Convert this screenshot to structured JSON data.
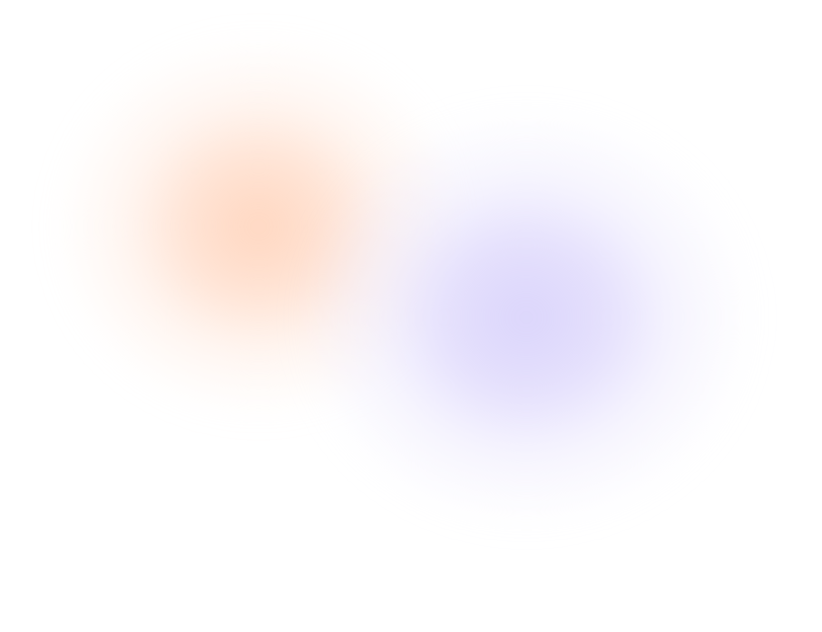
{
  "background": {
    "base_color": "#ffffff",
    "blobs": [
      {
        "name": "orange",
        "color": "#ffd6c0"
      },
      {
        "name": "purple",
        "color": "#dad4fb"
      }
    ]
  }
}
